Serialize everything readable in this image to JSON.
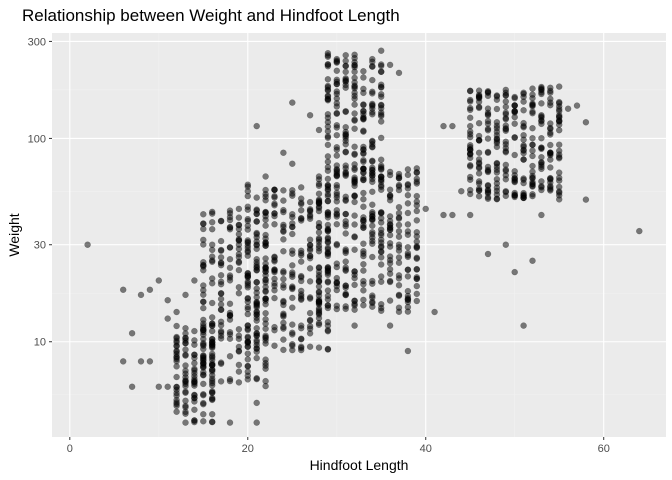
{
  "chart_data": {
    "type": "scatter",
    "title": "Relationship between Weight and Hindfoot Length",
    "xlabel": "Hindfoot Length",
    "ylabel": "Weight",
    "x_scale": "linear",
    "y_scale": "log10",
    "xlim": [
      -2,
      67
    ],
    "ylim": [
      3.4,
      330
    ],
    "x_ticks": [
      0,
      20,
      40,
      60
    ],
    "y_ticks": [
      10,
      30,
      100,
      300
    ],
    "x_tick_labels": [
      "0",
      "20",
      "40",
      "60"
    ],
    "y_tick_labels": [
      "10",
      "30",
      "100",
      "300"
    ],
    "grid": true,
    "legend": "none",
    "point_color": "#000000",
    "point_alpha": 0.5,
    "panel_background": "#ebebeb",
    "dense_clusters": [
      {
        "x_range": [
          12,
          16
        ],
        "y_range": [
          4,
          12
        ]
      },
      {
        "x_range": [
          15,
          22
        ],
        "y_range": [
          6,
          45
        ]
      },
      {
        "x_range": [
          20,
          29
        ],
        "y_range": [
          9,
          60
        ]
      },
      {
        "x_range": [
          29,
          35
        ],
        "y_range": [
          60,
          270
        ]
      },
      {
        "x_range": [
          28,
          39
        ],
        "y_range": [
          14,
          75
        ]
      },
      {
        "x_range": [
          45,
          55
        ],
        "y_range": [
          50,
          180
        ]
      }
    ],
    "points": [
      {
        "x": 2,
        "y": 30
      },
      {
        "x": 6,
        "y": 18
      },
      {
        "x": 6,
        "y": 8
      },
      {
        "x": 7,
        "y": 11
      },
      {
        "x": 7,
        "y": 6
      },
      {
        "x": 8,
        "y": 17
      },
      {
        "x": 8,
        "y": 8
      },
      {
        "x": 9,
        "y": 18
      },
      {
        "x": 9,
        "y": 8
      },
      {
        "x": 10,
        "y": 20
      },
      {
        "x": 10,
        "y": 6
      },
      {
        "x": 11,
        "y": 16
      },
      {
        "x": 11,
        "y": 6
      },
      {
        "x": 11,
        "y": 13
      },
      {
        "x": 12,
        "y": 14
      },
      {
        "x": 13,
        "y": 17
      },
      {
        "x": 13,
        "y": 4
      },
      {
        "x": 14,
        "y": 20
      },
      {
        "x": 15,
        "y": 38
      },
      {
        "x": 16,
        "y": 30
      },
      {
        "x": 17,
        "y": 28
      },
      {
        "x": 18,
        "y": 4
      },
      {
        "x": 19,
        "y": 45
      },
      {
        "x": 20,
        "y": 55
      },
      {
        "x": 21,
        "y": 4
      },
      {
        "x": 21,
        "y": 5
      },
      {
        "x": 21,
        "y": 115
      },
      {
        "x": 22,
        "y": 65
      },
      {
        "x": 23,
        "y": 52
      },
      {
        "x": 24,
        "y": 85
      },
      {
        "x": 25,
        "y": 150
      },
      {
        "x": 25,
        "y": 75
      },
      {
        "x": 26,
        "y": 12
      },
      {
        "x": 27,
        "y": 130
      },
      {
        "x": 28,
        "y": 110
      },
      {
        "x": 29,
        "y": 12
      },
      {
        "x": 30,
        "y": 185
      },
      {
        "x": 31,
        "y": 190
      },
      {
        "x": 32,
        "y": 12
      },
      {
        "x": 35,
        "y": 270
      },
      {
        "x": 36,
        "y": 230
      },
      {
        "x": 36,
        "y": 12
      },
      {
        "x": 37,
        "y": 210
      },
      {
        "x": 38,
        "y": 9
      },
      {
        "x": 39,
        "y": 60
      },
      {
        "x": 40,
        "y": 45
      },
      {
        "x": 41,
        "y": 14
      },
      {
        "x": 42,
        "y": 115
      },
      {
        "x": 43,
        "y": 115
      },
      {
        "x": 42,
        "y": 42
      },
      {
        "x": 43,
        "y": 42
      },
      {
        "x": 44,
        "y": 55
      },
      {
        "x": 45,
        "y": 42
      },
      {
        "x": 46,
        "y": 85
      },
      {
        "x": 47,
        "y": 70
      },
      {
        "x": 47,
        "y": 27
      },
      {
        "x": 49,
        "y": 55
      },
      {
        "x": 49,
        "y": 30
      },
      {
        "x": 50,
        "y": 22
      },
      {
        "x": 51,
        "y": 160
      },
      {
        "x": 51,
        "y": 12
      },
      {
        "x": 52,
        "y": 25
      },
      {
        "x": 52,
        "y": 58
      },
      {
        "x": 53,
        "y": 42
      },
      {
        "x": 53,
        "y": 90
      },
      {
        "x": 54,
        "y": 150
      },
      {
        "x": 55,
        "y": 130
      },
      {
        "x": 56,
        "y": 140
      },
      {
        "x": 57,
        "y": 145
      },
      {
        "x": 58,
        "y": 120
      },
      {
        "x": 58,
        "y": 50
      },
      {
        "x": 64,
        "y": 35
      }
    ]
  }
}
